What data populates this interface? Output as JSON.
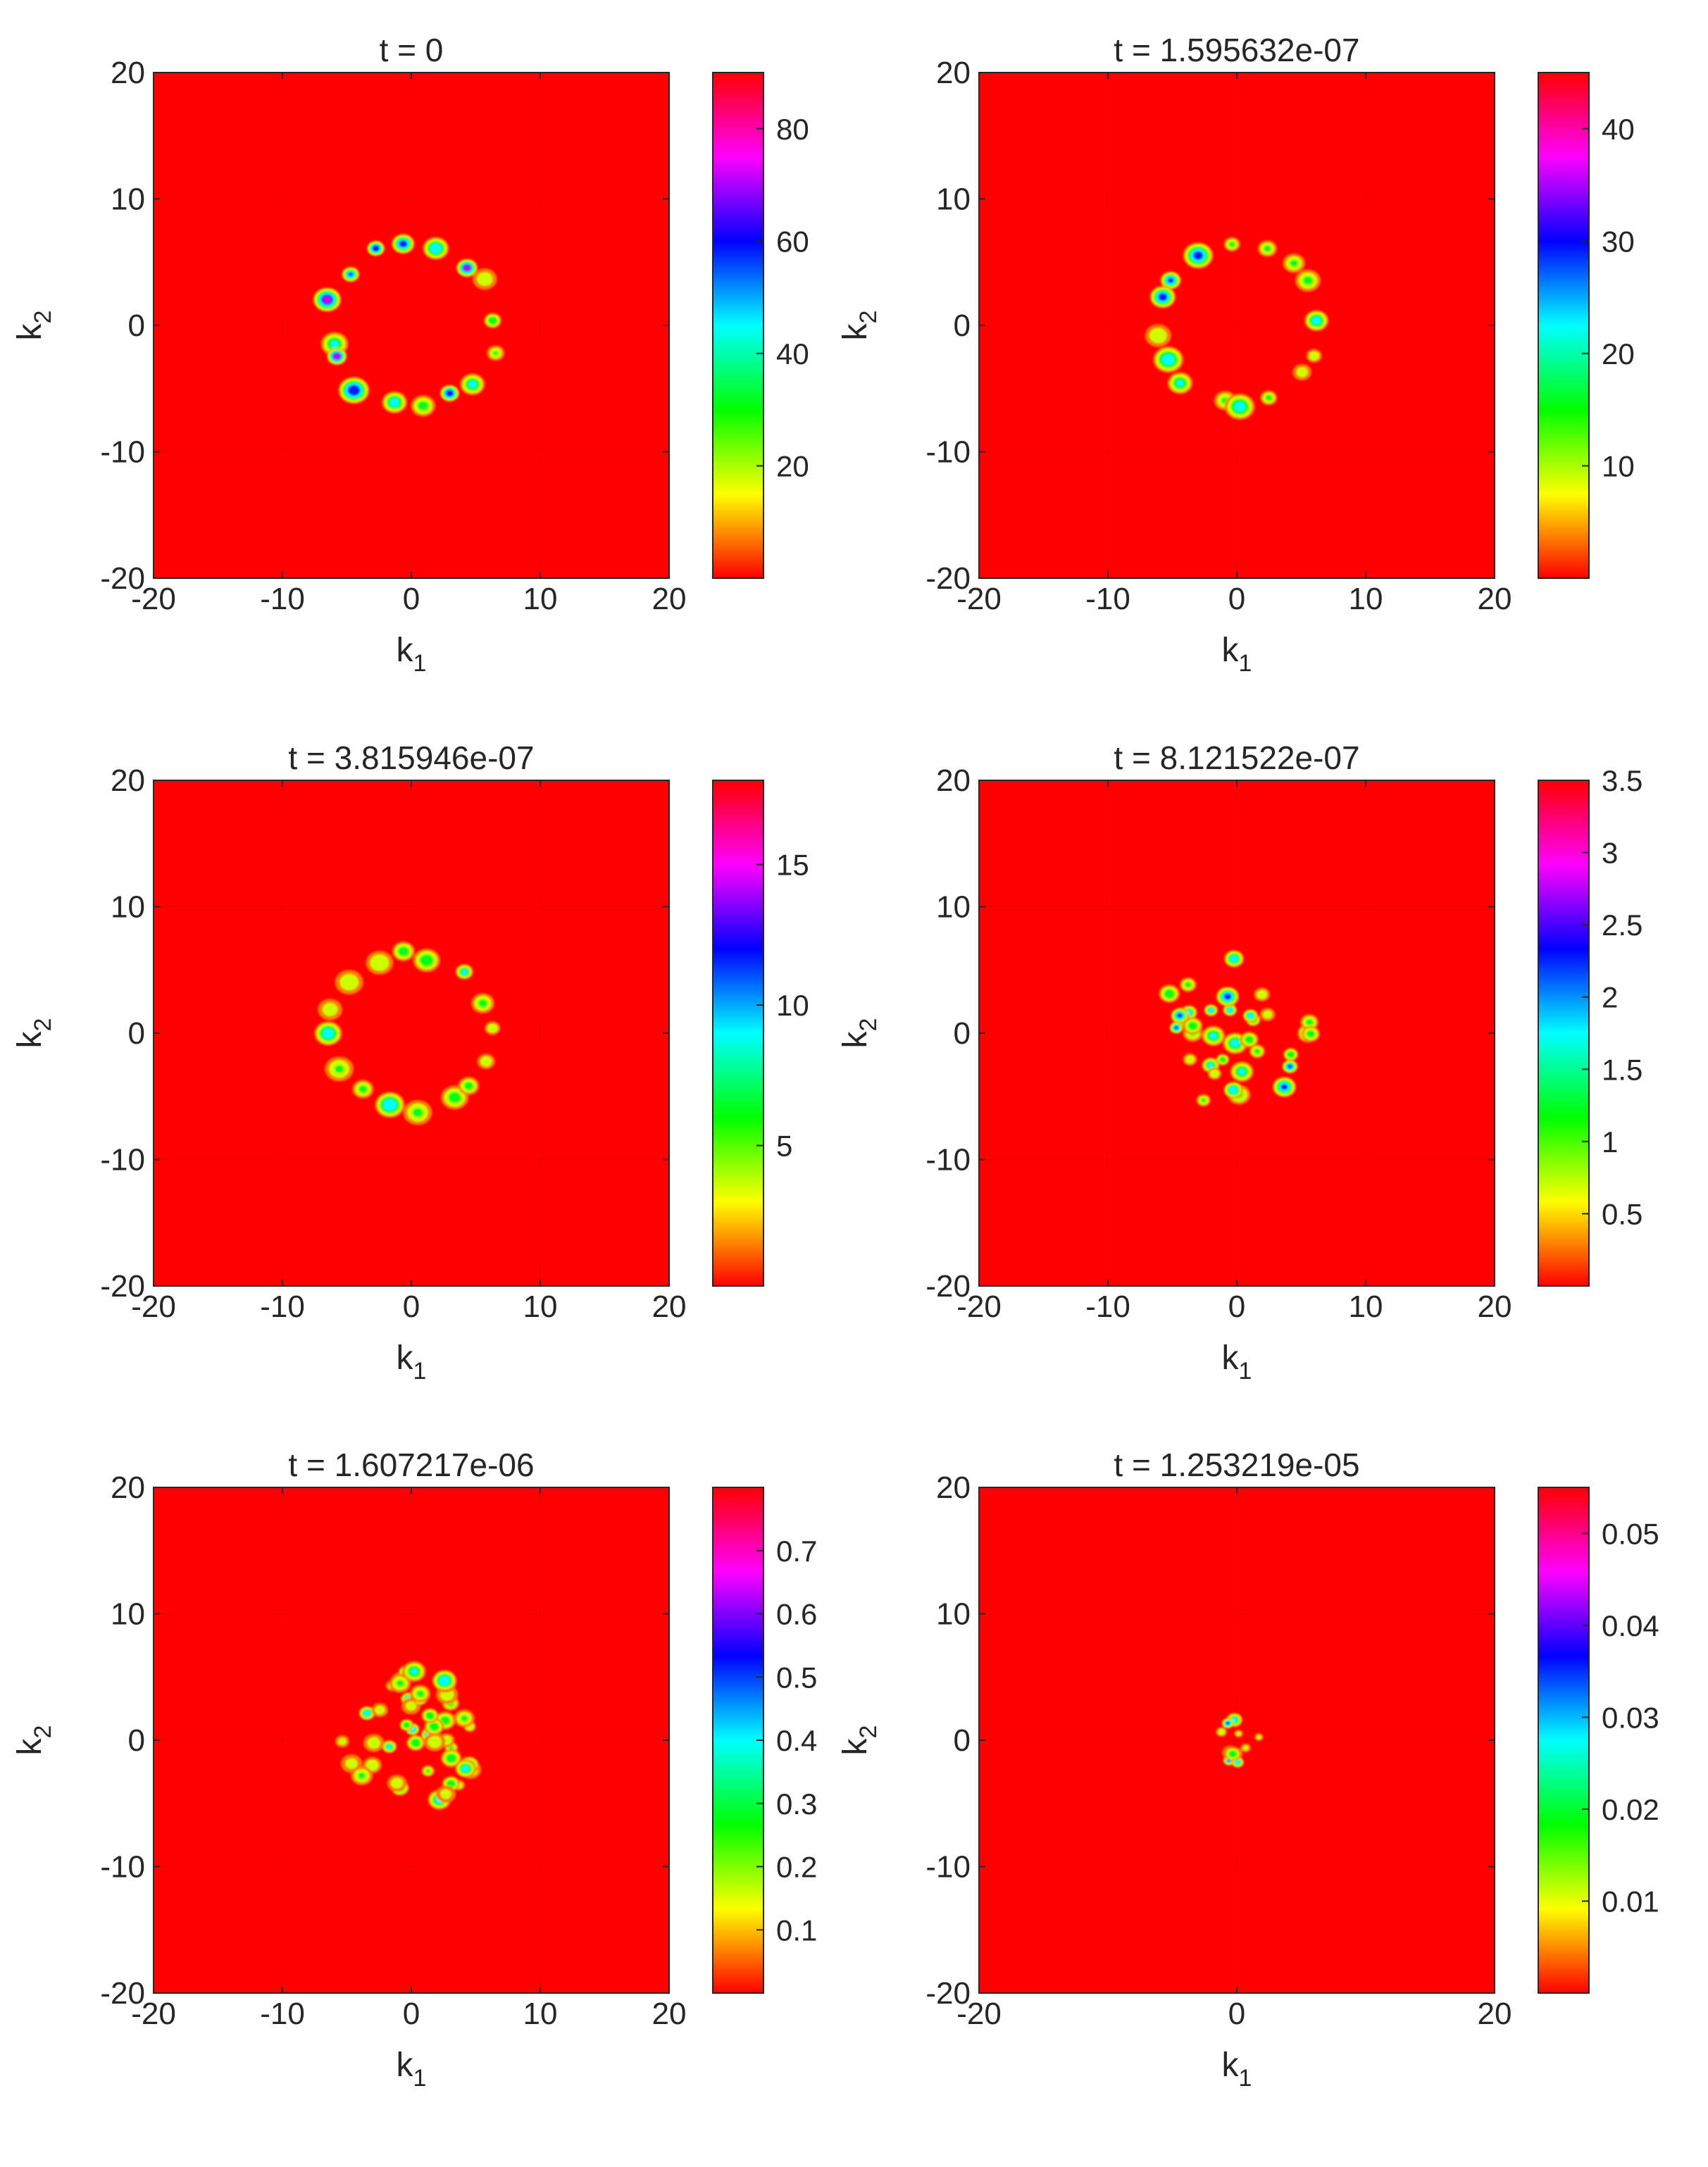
{
  "figure": {
    "colormap": "hsv (red-yellow-green-cyan-blue-magenta-red)",
    "background_color": "#ff0000"
  },
  "chart_data": [
    {
      "type": "heatmap",
      "title": "t = 0",
      "xlabel": "k",
      "xlabel_sub": "1",
      "ylabel": "k",
      "ylabel_sub": "2",
      "xlim": [
        -20,
        20
      ],
      "ylim": [
        -20,
        20
      ],
      "xticks": [
        -20,
        -10,
        0,
        10,
        20
      ],
      "yticks": [
        -20,
        -10,
        0,
        10,
        20
      ],
      "colorbar": {
        "min": 0,
        "max": 90,
        "ticks": [
          "20",
          "40",
          "60",
          "80"
        ],
        "tick_values": [
          20,
          40,
          60,
          80
        ]
      },
      "pattern": {
        "kind": "ring",
        "radius": 6.5,
        "blobs": 16,
        "seed": 11,
        "peak_fraction": 0.95
      }
    },
    {
      "type": "heatmap",
      "title": "t = 1.595632e-07",
      "xlabel": "k",
      "xlabel_sub": "1",
      "ylabel": "k",
      "ylabel_sub": "2",
      "xlim": [
        -20,
        20
      ],
      "ylim": [
        -20,
        20
      ],
      "xticks": [
        -20,
        -10,
        0,
        10,
        20
      ],
      "yticks": [
        -20,
        -10,
        0,
        10,
        20
      ],
      "colorbar": {
        "min": 0,
        "max": 45,
        "ticks": [
          "10",
          "20",
          "30",
          "40"
        ],
        "tick_values": [
          10,
          20,
          30,
          40
        ]
      },
      "pattern": {
        "kind": "ring",
        "radius": 6.3,
        "blobs": 16,
        "seed": 23,
        "peak_fraction": 0.8
      }
    },
    {
      "type": "heatmap",
      "title": "t = 3.815946e-07",
      "xlabel": "k",
      "xlabel_sub": "1",
      "ylabel": "k",
      "ylabel_sub": "2",
      "xlim": [
        -20,
        20
      ],
      "ylim": [
        -20,
        20
      ],
      "xticks": [
        -20,
        -10,
        0,
        10,
        20
      ],
      "yticks": [
        -20,
        -10,
        0,
        10,
        20
      ],
      "colorbar": {
        "min": 0,
        "max": 18,
        "ticks": [
          "5",
          "10",
          "15"
        ],
        "tick_values": [
          5,
          10,
          15
        ]
      },
      "pattern": {
        "kind": "ring",
        "radius": 6.2,
        "blobs": 16,
        "seed": 37,
        "peak_fraction": 0.75
      }
    },
    {
      "type": "heatmap",
      "title": "t = 8.121522e-07",
      "xlabel": "k",
      "xlabel_sub": "1",
      "ylabel": "k",
      "ylabel_sub": "2",
      "xlim": [
        -20,
        20
      ],
      "ylim": [
        -20,
        20
      ],
      "xticks": [
        -20,
        -10,
        0,
        10,
        20
      ],
      "yticks": [
        -20,
        -10,
        0,
        10,
        20
      ],
      "colorbar": {
        "min": 0,
        "max": 3.5,
        "ticks": [
          "0.5",
          "1",
          "1.5",
          "2",
          "2.5",
          "3",
          "3.5"
        ],
        "tick_values": [
          0.5,
          1,
          1.5,
          2,
          2.5,
          3,
          3.5
        ]
      },
      "pattern": {
        "kind": "disc",
        "radius": 6.2,
        "blobs": 34,
        "seed": 51,
        "peak_fraction": 0.7
      }
    },
    {
      "type": "heatmap",
      "title": "t = 1.607217e-06",
      "xlabel": "k",
      "xlabel_sub": "1",
      "ylabel": "k",
      "ylabel_sub": "2",
      "xlim": [
        -20,
        20
      ],
      "ylim": [
        -20,
        20
      ],
      "xticks": [
        -20,
        -10,
        0,
        10,
        20
      ],
      "yticks": [
        -20,
        -10,
        0,
        10,
        20
      ],
      "colorbar": {
        "min": 0,
        "max": 0.8,
        "ticks": [
          "0.1",
          "0.2",
          "0.3",
          "0.4",
          "0.5",
          "0.6",
          "0.7"
        ],
        "tick_values": [
          0.1,
          0.2,
          0.3,
          0.4,
          0.5,
          0.6,
          0.7
        ]
      },
      "pattern": {
        "kind": "disc",
        "radius": 5.5,
        "blobs": 44,
        "seed": 67,
        "peak_fraction": 0.65
      }
    },
    {
      "type": "heatmap",
      "title": "t = 1.253219e-05",
      "xlabel": "k",
      "xlabel_sub": "1",
      "ylabel": "k",
      "ylabel_sub": "2",
      "xlim": [
        -20,
        20
      ],
      "ylim": [
        -20,
        20
      ],
      "xticks": [
        -20,
        0,
        20
      ],
      "yticks": [
        -20,
        -10,
        0,
        10,
        20
      ],
      "colorbar": {
        "min": 0,
        "max": 0.055,
        "ticks": [
          "0.01",
          "0.02",
          "0.03",
          "0.04",
          "0.05"
        ],
        "tick_values": [
          0.01,
          0.02,
          0.03,
          0.04,
          0.05
        ]
      },
      "pattern": {
        "kind": "disc",
        "radius": 1.8,
        "blobs": 12,
        "seed": 83,
        "peak_fraction": 0.7
      }
    }
  ]
}
